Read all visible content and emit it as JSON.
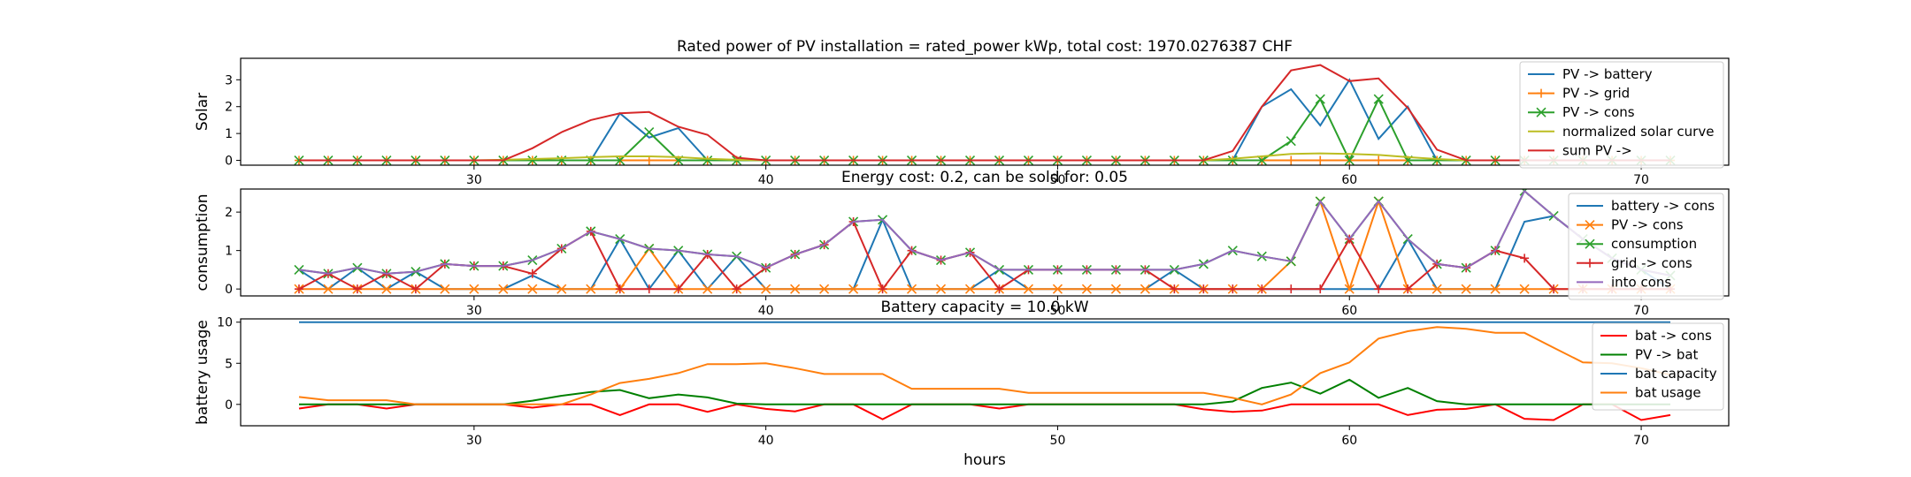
{
  "figure": {
    "xlabel": "hours",
    "xticks": [
      30,
      40,
      50,
      60,
      70
    ]
  },
  "chart_data": [
    {
      "type": "line",
      "title": "Rated power of PV installation = rated_power kWp, total cost: 1970.0276387 CHF",
      "xlabel": "",
      "ylabel": "Solar",
      "xlim": [
        22,
        73
      ],
      "ylim": [
        -0.18,
        3.8
      ],
      "yticks": [
        0,
        1,
        2,
        3
      ],
      "legend_position": "upper right",
      "x": [
        24,
        25,
        26,
        27,
        28,
        29,
        30,
        31,
        32,
        33,
        34,
        35,
        36,
        37,
        38,
        39,
        40,
        41,
        42,
        43,
        44,
        45,
        46,
        47,
        48,
        49,
        50,
        51,
        52,
        53,
        54,
        55,
        56,
        57,
        58,
        59,
        60,
        61,
        62,
        63,
        64,
        65,
        66,
        67,
        68,
        69,
        70,
        71
      ],
      "series": [
        {
          "name": "PV -> battery",
          "color": "#1f77b4",
          "marker": "none",
          "values": [
            0,
            0,
            0,
            0,
            0,
            0,
            0,
            0,
            0,
            0,
            0,
            1.75,
            0.85,
            1.2,
            0,
            0,
            0,
            0,
            0,
            0,
            0,
            0,
            0,
            0,
            0,
            0,
            0,
            0,
            0,
            0,
            0,
            0,
            0,
            2.0,
            2.65,
            1.3,
            3.0,
            0.8,
            2.0,
            0,
            0,
            0,
            0,
            0,
            0,
            0,
            0,
            0
          ]
        },
        {
          "name": "PV -> grid",
          "color": "#ff7f0e",
          "marker": "plus",
          "values": [
            0,
            0,
            0,
            0,
            0,
            0,
            0,
            0,
            0,
            0,
            0,
            0,
            0,
            0,
            0,
            0,
            0,
            0,
            0,
            0,
            0,
            0,
            0,
            0,
            0,
            0,
            0,
            0,
            0,
            0,
            0,
            0,
            0,
            0,
            0,
            0,
            0,
            0,
            0,
            0,
            0,
            0,
            0,
            0,
            0,
            0,
            0,
            0
          ]
        },
        {
          "name": "PV -> cons",
          "color": "#2ca02c",
          "marker": "x",
          "values": [
            0,
            0,
            0,
            0,
            0,
            0,
            0,
            0,
            0,
            0,
            0,
            0,
            1.05,
            0,
            0,
            0,
            0,
            0,
            0,
            0,
            0,
            0,
            0,
            0,
            0,
            0,
            0,
            0,
            0,
            0,
            0,
            0,
            0,
            0,
            0.72,
            2.28,
            0,
            2.28,
            0,
            0,
            0,
            0,
            0,
            0,
            0,
            0,
            0,
            0
          ]
        },
        {
          "name": "normalized solar curve",
          "color": "#bcbd22",
          "marker": "none",
          "values": [
            0,
            0,
            0,
            0,
            0,
            0,
            0,
            0.02,
            0.05,
            0.08,
            0.12,
            0.15,
            0.15,
            0.12,
            0.06,
            0.02,
            0,
            0,
            0,
            0,
            0,
            0,
            0,
            0,
            0,
            0,
            0,
            0,
            0,
            0,
            0,
            0,
            0.06,
            0.15,
            0.24,
            0.26,
            0.24,
            0.2,
            0.12,
            0.05,
            0,
            0,
            0,
            0,
            0,
            0,
            0,
            0
          ]
        },
        {
          "name": "sum PV ->",
          "color": "#d62728",
          "marker": "none",
          "values": [
            0,
            0,
            0,
            0,
            0,
            0,
            0,
            0,
            0.45,
            1.05,
            1.5,
            1.75,
            1.8,
            1.25,
            0.95,
            0.1,
            0,
            0,
            0,
            0,
            0,
            0,
            0,
            0,
            0,
            0,
            0,
            0,
            0,
            0,
            0,
            0,
            0.35,
            2.0,
            3.35,
            3.55,
            2.95,
            3.05,
            1.95,
            0.4,
            0,
            0,
            0,
            0,
            0,
            0,
            0,
            0
          ]
        }
      ]
    },
    {
      "type": "line",
      "title": "Energy cost: 0.2, can be sold for: 0.05",
      "xlabel": "",
      "ylabel": "consumption",
      "xlim": [
        22,
        73
      ],
      "ylim": [
        -0.18,
        2.6
      ],
      "yticks": [
        0,
        1,
        2
      ],
      "legend_position": "upper right",
      "x": [
        24,
        25,
        26,
        27,
        28,
        29,
        30,
        31,
        32,
        33,
        34,
        35,
        36,
        37,
        38,
        39,
        40,
        41,
        42,
        43,
        44,
        45,
        46,
        47,
        48,
        49,
        50,
        51,
        52,
        53,
        54,
        55,
        56,
        57,
        58,
        59,
        60,
        61,
        62,
        63,
        64,
        65,
        66,
        67,
        68,
        69,
        70,
        71
      ],
      "series": [
        {
          "name": "battery -> cons",
          "color": "#1f77b4",
          "marker": "none",
          "values": [
            0.5,
            0,
            0.55,
            0,
            0.45,
            0,
            0,
            0,
            0.35,
            0,
            0,
            1.3,
            0,
            1.0,
            0,
            0.85,
            0,
            0,
            0,
            0,
            1.8,
            0,
            0,
            0,
            0.5,
            0,
            0,
            0,
            0,
            0,
            0.5,
            0,
            0,
            0,
            0,
            0,
            0,
            0,
            1.3,
            0,
            0,
            0,
            1.75,
            1.9,
            1.3,
            0.8,
            0.5,
            0
          ]
        },
        {
          "name": "PV -> cons",
          "color": "#ff7f0e",
          "marker": "x",
          "values": [
            0,
            0,
            0,
            0,
            0,
            0,
            0,
            0,
            0,
            0,
            0,
            0,
            1.05,
            0,
            0,
            0,
            0,
            0,
            0,
            0,
            0,
            0,
            0,
            0,
            0,
            0,
            0,
            0,
            0,
            0,
            0,
            0,
            0,
            0,
            0.72,
            2.28,
            0,
            2.28,
            0,
            0,
            0,
            0,
            0,
            0,
            0,
            0,
            0,
            0
          ]
        },
        {
          "name": "consumption",
          "color": "#2ca02c",
          "marker": "x",
          "values": [
            0.5,
            0.4,
            0.55,
            0.4,
            0.45,
            0.65,
            0.6,
            0.6,
            0.75,
            1.05,
            1.5,
            1.3,
            1.05,
            1.0,
            0.9,
            0.85,
            0.55,
            0.9,
            1.15,
            1.75,
            1.8,
            1.0,
            0.75,
            0.95,
            0.5,
            0.5,
            0.5,
            0.5,
            0.5,
            0.5,
            0.5,
            0.65,
            1.0,
            0.85,
            0.72,
            2.28,
            1.3,
            2.28,
            1.3,
            0.65,
            0.55,
            1.0,
            2.55,
            1.9,
            1.3,
            0.8,
            0.5,
            0.35
          ]
        },
        {
          "name": "grid -> cons",
          "color": "#d62728",
          "marker": "plus",
          "values": [
            0,
            0.4,
            0,
            0.4,
            0,
            0.65,
            0.6,
            0.6,
            0.4,
            1.05,
            1.5,
            0,
            0,
            0,
            0.9,
            0,
            0.55,
            0.9,
            1.15,
            1.75,
            0,
            1.0,
            0.75,
            0.95,
            0,
            0.5,
            0.5,
            0.5,
            0.5,
            0.5,
            0,
            0,
            0,
            0,
            0,
            0,
            1.3,
            0,
            0,
            0.65,
            0.55,
            1.0,
            0.8,
            0,
            0,
            0,
            0,
            0
          ]
        },
        {
          "name": "into cons",
          "color": "#9467bd",
          "marker": "none",
          "values": [
            0.5,
            0.4,
            0.55,
            0.4,
            0.45,
            0.65,
            0.6,
            0.6,
            0.75,
            1.05,
            1.5,
            1.3,
            1.05,
            1.0,
            0.9,
            0.85,
            0.55,
            0.9,
            1.15,
            1.75,
            1.8,
            1.0,
            0.75,
            0.95,
            0.5,
            0.5,
            0.5,
            0.5,
            0.5,
            0.5,
            0.5,
            0.65,
            1.0,
            0.85,
            0.72,
            2.28,
            1.3,
            2.28,
            1.3,
            0.65,
            0.55,
            1.0,
            2.55,
            1.9,
            1.3,
            0.8,
            0.5,
            0.35
          ]
        }
      ]
    },
    {
      "type": "line",
      "title": "Battery capacity = 10.0 kW",
      "xlabel": "hours",
      "ylabel": "battery usage",
      "xlim": [
        22,
        73
      ],
      "ylim": [
        -2.6,
        10.4
      ],
      "yticks": [
        0,
        5,
        10
      ],
      "legend_position": "upper right",
      "x": [
        24,
        25,
        26,
        27,
        28,
        29,
        30,
        31,
        32,
        33,
        34,
        35,
        36,
        37,
        38,
        39,
        40,
        41,
        42,
        43,
        44,
        45,
        46,
        47,
        48,
        49,
        50,
        51,
        52,
        53,
        54,
        55,
        56,
        57,
        58,
        59,
        60,
        61,
        62,
        63,
        64,
        65,
        66,
        67,
        68,
        69,
        70,
        71
      ],
      "series": [
        {
          "name": "bat -> cons",
          "color": "#ff0000",
          "marker": "none",
          "values": [
            -0.5,
            0,
            0,
            -0.5,
            0,
            0,
            0,
            0,
            -0.4,
            0,
            0,
            -1.3,
            0,
            0,
            -0.9,
            0,
            -0.55,
            -0.85,
            0,
            0,
            -1.8,
            0,
            0,
            0,
            -0.5,
            0,
            0,
            0,
            0,
            0,
            0,
            -0.6,
            -0.9,
            -0.75,
            0,
            0,
            0,
            0,
            -1.3,
            -0.65,
            -0.55,
            0,
            -1.75,
            -1.9,
            0,
            0,
            -1.9,
            -1.3
          ]
        },
        {
          "name": "PV -> bat",
          "color": "#008000",
          "marker": "none",
          "values": [
            0,
            0,
            0,
            0,
            0,
            0,
            0,
            0,
            0.45,
            1.05,
            1.5,
            1.75,
            0.75,
            1.2,
            0.85,
            0.1,
            0,
            0,
            0,
            0,
            0,
            0,
            0,
            0,
            0,
            0,
            0,
            0,
            0,
            0,
            0,
            0,
            0.35,
            2.0,
            2.65,
            1.3,
            3.0,
            0.8,
            2.0,
            0.4,
            0,
            0,
            0,
            0,
            0,
            0,
            0,
            0
          ]
        },
        {
          "name": "bat capacity",
          "color": "#1f77b4",
          "marker": "none",
          "values": [
            10,
            10,
            10,
            10,
            10,
            10,
            10,
            10,
            10,
            10,
            10,
            10,
            10,
            10,
            10,
            10,
            10,
            10,
            10,
            10,
            10,
            10,
            10,
            10,
            10,
            10,
            10,
            10,
            10,
            10,
            10,
            10,
            10,
            10,
            10,
            10,
            10,
            10,
            10,
            10,
            10,
            10,
            10,
            10,
            10,
            10,
            10,
            10
          ]
        },
        {
          "name": "bat usage",
          "color": "#ff7f0e",
          "marker": "none",
          "values": [
            0.9,
            0.5,
            0.5,
            0.5,
            0,
            0,
            0,
            0,
            0,
            0,
            1.2,
            2.6,
            3.1,
            3.8,
            4.9,
            4.9,
            5.0,
            4.4,
            3.7,
            3.7,
            3.7,
            1.9,
            1.9,
            1.9,
            1.9,
            1.4,
            1.4,
            1.4,
            1.4,
            1.4,
            1.4,
            1.4,
            0.8,
            0,
            1.2,
            3.8,
            5.1,
            8.0,
            8.9,
            9.4,
            9.2,
            8.7,
            8.7,
            6.9,
            5.1,
            5.0,
            4.4,
            3.6
          ]
        }
      ]
    }
  ]
}
